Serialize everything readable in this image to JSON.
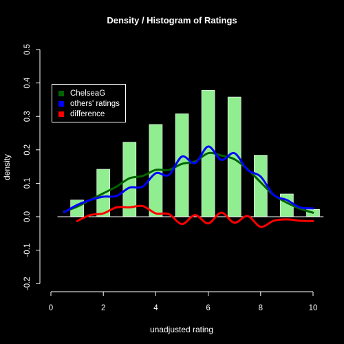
{
  "chart_data": {
    "type": "bar",
    "title": "Density / Histogram of Ratings",
    "xlabel": "unadjusted rating",
    "ylabel": "density",
    "xlim": [
      0,
      10
    ],
    "ylim": [
      -0.2,
      0.5
    ],
    "x_ticks": [
      "0",
      "2",
      "4",
      "6",
      "8",
      "10"
    ],
    "y_ticks": [
      "-0.2",
      "-0.1",
      "0.0",
      "0.1",
      "0.2",
      "0.3",
      "0.4",
      "0.5"
    ],
    "grid": false,
    "legend_position": "top-left",
    "histogram": {
      "color": "#90ee90",
      "bars": [
        {
          "x": 1,
          "value": 0.05
        },
        {
          "x": 2,
          "value": 0.142
        },
        {
          "x": 3,
          "value": 0.223
        },
        {
          "x": 4,
          "value": 0.276
        },
        {
          "x": 5,
          "value": 0.308
        },
        {
          "x": 6,
          "value": 0.378
        },
        {
          "x": 7,
          "value": 0.358
        },
        {
          "x": 8,
          "value": 0.184
        },
        {
          "x": 9,
          "value": 0.068
        },
        {
          "x": 10,
          "value": 0.022
        }
      ]
    },
    "series": [
      {
        "name": "ChelseaG",
        "color": "#006400",
        "x": [
          0.5,
          1,
          1.5,
          2,
          2.5,
          3,
          3.5,
          4,
          4.5,
          5,
          5.5,
          6,
          6.5,
          7,
          7.5,
          8,
          8.5,
          9,
          9.5,
          10
        ],
        "y": [
          0.015,
          0.03,
          0.05,
          0.07,
          0.09,
          0.115,
          0.122,
          0.14,
          0.14,
          0.158,
          0.165,
          0.19,
          0.183,
          0.172,
          0.142,
          0.103,
          0.065,
          0.042,
          0.024,
          0.012
        ]
      },
      {
        "name": "others' ratings",
        "color": "#0000ff",
        "x": [
          0.5,
          1,
          1.5,
          2,
          2.5,
          3,
          3.5,
          4,
          4.5,
          5,
          5.5,
          6,
          6.5,
          7,
          7.5,
          8,
          8.5,
          9,
          9.5,
          10
        ],
        "y": [
          0.013,
          0.035,
          0.05,
          0.06,
          0.062,
          0.087,
          0.09,
          0.13,
          0.125,
          0.18,
          0.16,
          0.21,
          0.17,
          0.19,
          0.14,
          0.12,
          0.065,
          0.05,
          0.028,
          0.025
        ]
      },
      {
        "name": "difference",
        "color": "#ff0000",
        "x": [
          1,
          1.5,
          2,
          2.5,
          3,
          3.5,
          4,
          4.5,
          5,
          5.5,
          6,
          6.5,
          7,
          7.5,
          8,
          8.5,
          9,
          9.5,
          10
        ],
        "y": [
          -0.013,
          0.005,
          0.01,
          0.028,
          0.028,
          0.032,
          0.01,
          0.008,
          -0.022,
          0.005,
          -0.02,
          0.012,
          -0.018,
          0.002,
          -0.03,
          -0.012,
          -0.008,
          -0.012,
          -0.013
        ]
      }
    ]
  }
}
